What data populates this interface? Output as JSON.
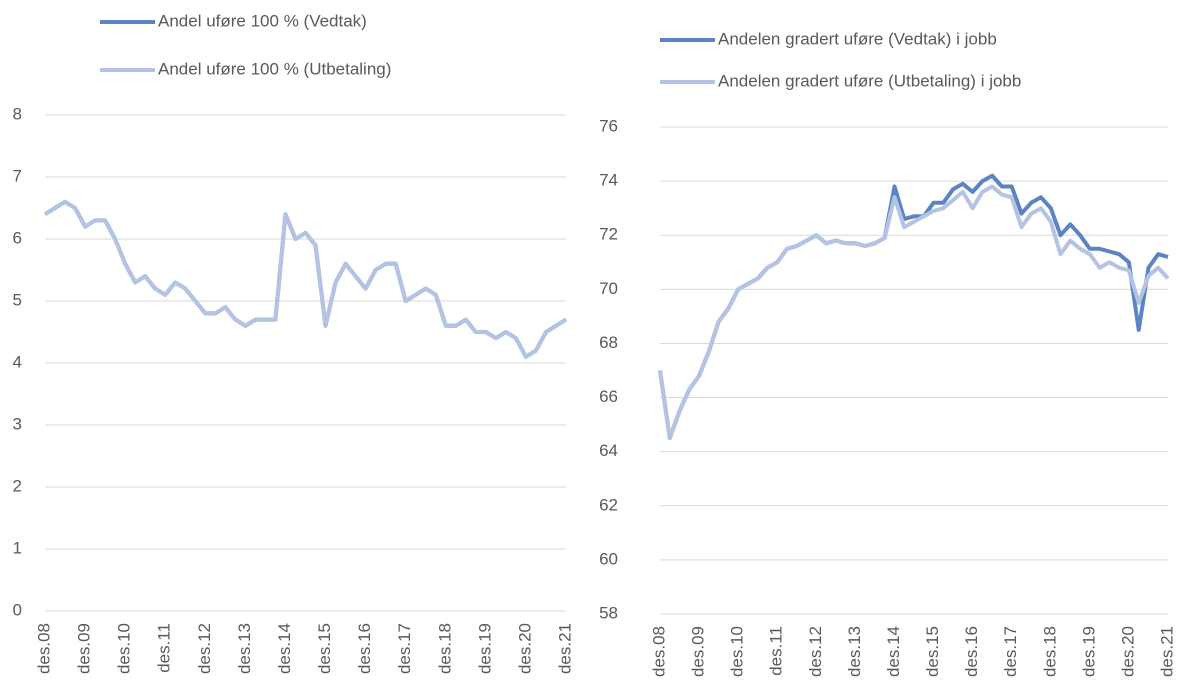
{
  "chart_data": [
    {
      "type": "line",
      "categories": [
        "des.08",
        null,
        null,
        null,
        "des.09",
        null,
        null,
        null,
        "des.10",
        null,
        null,
        null,
        "des.11",
        null,
        null,
        null,
        "des.12",
        null,
        null,
        null,
        "des.13",
        null,
        null,
        null,
        "des.14",
        null,
        null,
        null,
        "des.15",
        null,
        null,
        null,
        "des.16",
        null,
        null,
        null,
        "des.17",
        null,
        null,
        null,
        "des.18",
        null,
        null,
        null,
        "des.19",
        null,
        null,
        null,
        "des.20",
        null,
        null,
        null,
        "des.21"
      ],
      "series": [
        {
          "name": "Andel uføre 100 % (Vedtak)",
          "color": "#5b84c4",
          "values": [
            6.4,
            6.5,
            6.6,
            6.5,
            6.2,
            6.3,
            6.3,
            6.0,
            5.6,
            5.3,
            5.4,
            5.2,
            5.1,
            5.3,
            5.2,
            5.0,
            4.8,
            4.8,
            4.9,
            4.7,
            4.6,
            4.7,
            4.7,
            4.7,
            6.4,
            6.0,
            6.1,
            5.9,
            4.6,
            5.3,
            5.6,
            5.4,
            5.2,
            5.5,
            5.6,
            5.6,
            5.0,
            5.1,
            5.2,
            5.1,
            4.6,
            4.6,
            4.7,
            4.5,
            4.5,
            4.4,
            4.5,
            4.4,
            4.1,
            4.2,
            4.5,
            4.6,
            4.7
          ]
        },
        {
          "name": "Andel uføre 100 % (Utbetaling)",
          "color": "#b4c3e3",
          "values": [
            6.4,
            6.5,
            6.6,
            6.5,
            6.2,
            6.3,
            6.3,
            6.0,
            5.6,
            5.3,
            5.4,
            5.2,
            5.1,
            5.3,
            5.2,
            5.0,
            4.8,
            4.8,
            4.9,
            4.7,
            4.6,
            4.7,
            4.7,
            4.7,
            6.4,
            6.0,
            6.1,
            5.9,
            4.6,
            5.3,
            5.6,
            5.4,
            5.2,
            5.5,
            5.6,
            5.6,
            5.0,
            5.1,
            5.2,
            5.1,
            4.6,
            4.6,
            4.7,
            4.5,
            4.5,
            4.4,
            4.5,
            4.4,
            4.1,
            4.2,
            4.5,
            4.6,
            4.7
          ]
        }
      ],
      "ylim": [
        0,
        8
      ],
      "yticks": [
        0,
        1,
        2,
        3,
        4,
        5,
        6,
        7,
        8
      ],
      "grid": true
    },
    {
      "type": "line",
      "categories": [
        "des.08",
        null,
        null,
        null,
        "des.09",
        null,
        null,
        null,
        "des.10",
        null,
        null,
        null,
        "des.11",
        null,
        null,
        null,
        "des.12",
        null,
        null,
        null,
        "des.13",
        null,
        null,
        null,
        "des.14",
        null,
        null,
        null,
        "des.15",
        null,
        null,
        null,
        "des.16",
        null,
        null,
        null,
        "des.17",
        null,
        null,
        null,
        "des.18",
        null,
        null,
        null,
        "des.19",
        null,
        null,
        null,
        "des.20",
        null,
        null,
        null,
        "des.21"
      ],
      "series": [
        {
          "name": "Andelen gradert uføre (Vedtak) i jobb",
          "color": "#5b84c4",
          "values": [
            67.0,
            64.5,
            65.5,
            66.3,
            66.8,
            67.7,
            68.8,
            69.3,
            70.0,
            70.2,
            70.4,
            70.8,
            71.0,
            71.5,
            71.6,
            71.8,
            72.0,
            71.7,
            71.8,
            71.7,
            71.7,
            71.6,
            71.7,
            71.9,
            73.8,
            72.6,
            72.7,
            72.7,
            73.2,
            73.2,
            73.7,
            73.9,
            73.6,
            74.0,
            74.2,
            73.8,
            73.8,
            72.8,
            73.2,
            73.4,
            73.0,
            72.0,
            72.4,
            72.0,
            71.5,
            71.5,
            71.4,
            71.3,
            71.0,
            68.5,
            70.8,
            71.3,
            71.2
          ]
        },
        {
          "name": "Andelen gradert uføre (Utbetaling) i jobb",
          "color": "#b4c3e3",
          "values": [
            67.0,
            64.5,
            65.5,
            66.3,
            66.8,
            67.7,
            68.8,
            69.3,
            70.0,
            70.2,
            70.4,
            70.8,
            71.0,
            71.5,
            71.6,
            71.8,
            72.0,
            71.7,
            71.8,
            71.7,
            71.7,
            71.6,
            71.7,
            71.9,
            73.4,
            72.3,
            72.5,
            72.7,
            72.9,
            73.0,
            73.3,
            73.6,
            73.0,
            73.6,
            73.8,
            73.5,
            73.4,
            72.3,
            72.8,
            73.0,
            72.5,
            71.3,
            71.8,
            71.5,
            71.3,
            70.8,
            71.0,
            70.8,
            70.7,
            69.5,
            70.5,
            70.8,
            70.4
          ]
        }
      ],
      "ylim": [
        58,
        76
      ],
      "yticks": [
        58,
        60,
        62,
        64,
        66,
        68,
        70,
        72,
        74,
        76
      ],
      "grid": true
    }
  ]
}
